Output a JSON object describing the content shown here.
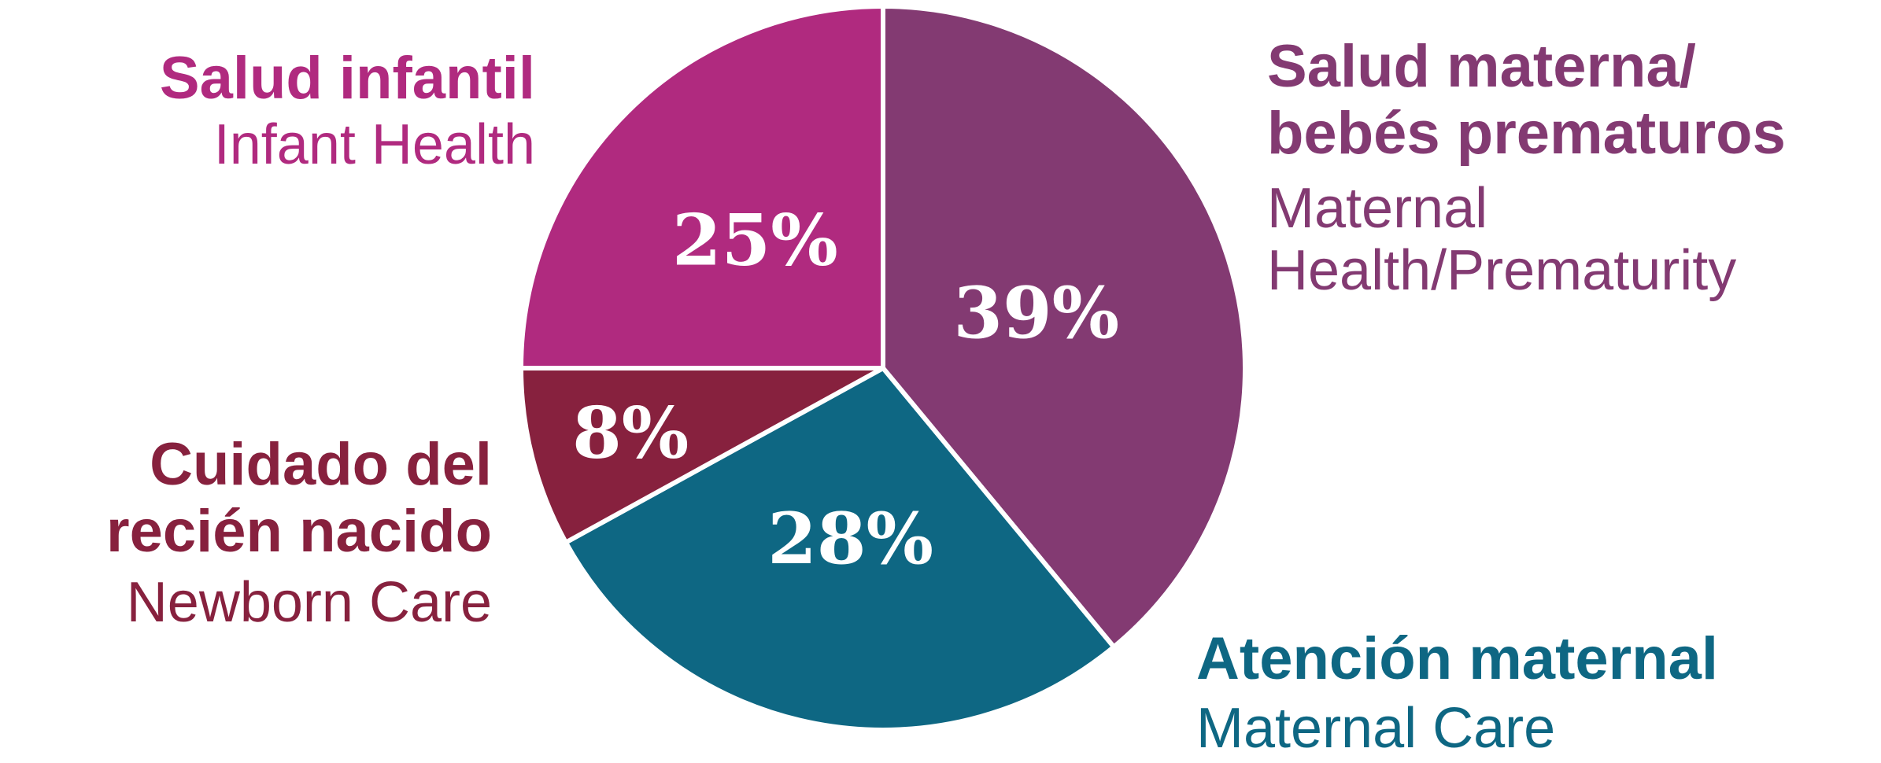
{
  "chart_data": {
    "type": "pie",
    "slices": [
      {
        "id": "maternal-health",
        "label_es": "Salud materna/\nbebés prematuros",
        "label_en": "Maternal\nHealth/Prematurity",
        "value": 39,
        "value_label": "39%",
        "color": "#833A72"
      },
      {
        "id": "maternal-care",
        "label_es": "Atención maternal",
        "label_en": "Maternal Care",
        "value": 28,
        "value_label": "28%",
        "color": "#0E6783"
      },
      {
        "id": "newborn-care",
        "label_es": "Cuidado del\nrecién nacido",
        "label_en": "Newborn Care",
        "value": 8,
        "value_label": "8%",
        "color": "#87213E"
      },
      {
        "id": "infant-health",
        "label_es": "Salud infantil",
        "label_en": "Infant Health",
        "value": 25,
        "value_label": "25%",
        "color": "#B02A7F"
      }
    ]
  }
}
